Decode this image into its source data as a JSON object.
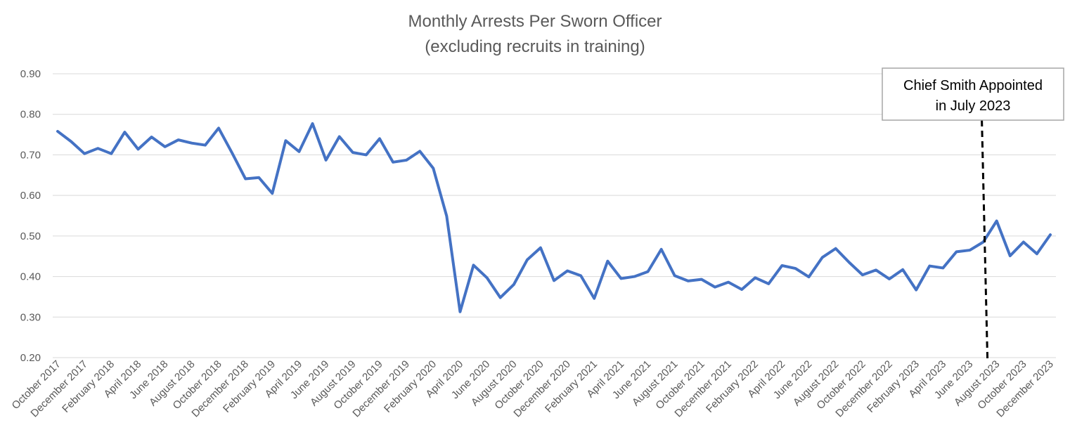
{
  "chart_data": {
    "type": "line",
    "title": "Monthly Arrests Per Sworn Officer",
    "subtitle": "(excluding recruits in training)",
    "xlabel": "",
    "ylabel": "",
    "ylim": [
      0.2,
      0.9
    ],
    "yticks": [
      "0.20",
      "0.30",
      "0.40",
      "0.50",
      "0.60",
      "0.70",
      "0.80",
      "0.90"
    ],
    "grid": true,
    "legend": "none",
    "color": "#4472c4",
    "x": [
      "October 2017",
      "November 2017",
      "December 2017",
      "January 2018",
      "February 2018",
      "March 2018",
      "April 2018",
      "May 2018",
      "June 2018",
      "July 2018",
      "August 2018",
      "September 2018",
      "October 2018",
      "November 2018",
      "December 2018",
      "January 2019",
      "February 2019",
      "March 2019",
      "April 2019",
      "May 2019",
      "June 2019",
      "July 2019",
      "August 2019",
      "September 2019",
      "October 2019",
      "November 2019",
      "December 2019",
      "January 2020",
      "February 2020",
      "March 2020",
      "April 2020",
      "May 2020",
      "June 2020",
      "July 2020",
      "August 2020",
      "September 2020",
      "October 2020",
      "November 2020",
      "December 2020",
      "January 2021",
      "February 2021",
      "March 2021",
      "April 2021",
      "May 2021",
      "June 2021",
      "July 2021",
      "August 2021",
      "September 2021",
      "October 2021",
      "November 2021",
      "December 2021",
      "January 2022",
      "February 2022",
      "March 2022",
      "April 2022",
      "May 2022",
      "June 2022",
      "July 2022",
      "August 2022",
      "September 2022",
      "October 2022",
      "November 2022",
      "December 2022",
      "January 2023",
      "February 2023",
      "March 2023",
      "April 2023",
      "May 2023",
      "June 2023",
      "July 2023",
      "August 2023",
      "September 2023",
      "October 2023",
      "November 2023",
      "December 2023"
    ],
    "xtick_labels": [
      "October 2017",
      "December 2017",
      "February 2018",
      "April 2018",
      "June 2018",
      "August 2018",
      "October 2018",
      "December 2018",
      "February 2019",
      "April 2019",
      "June 2019",
      "August 2019",
      "October 2019",
      "December 2019",
      "February 2020",
      "April 2020",
      "June 2020",
      "August 2020",
      "October 2020",
      "December 2020",
      "February 2021",
      "April 2021",
      "June 2021",
      "August 2021",
      "October 2021",
      "December 2021",
      "February 2022",
      "April 2022",
      "June 2022",
      "August 2022",
      "October 2022",
      "December 2022",
      "February 2023",
      "April 2023",
      "June 2023",
      "August 2023",
      "October 2023",
      "December 2023"
    ],
    "series": [
      {
        "values": [
          0.758,
          0.733,
          0.703,
          0.716,
          0.703,
          0.756,
          0.714,
          0.744,
          0.72,
          0.737,
          0.729,
          0.724,
          0.766,
          0.705,
          0.641,
          0.644,
          0.605,
          0.735,
          0.708,
          0.777,
          0.687,
          0.745,
          0.706,
          0.7,
          0.74,
          0.682,
          0.687,
          0.709,
          0.667,
          0.549,
          0.313,
          0.428,
          0.397,
          0.348,
          0.38,
          0.441,
          0.471,
          0.39,
          0.414,
          0.402,
          0.346,
          0.438,
          0.395,
          0.4,
          0.412,
          0.467,
          0.402,
          0.389,
          0.393,
          0.374,
          0.386,
          0.368,
          0.397,
          0.382,
          0.427,
          0.42,
          0.399,
          0.447,
          0.469,
          0.435,
          0.404,
          0.416,
          0.394,
          0.417,
          0.367,
          0.426,
          0.421,
          0.461,
          0.465,
          0.485,
          0.537,
          0.451,
          0.485,
          0.456,
          0.503
        ]
      }
    ],
    "annotations": [
      {
        "text_line1": "Chief Smith Appointed",
        "text_line2": "in July 2023",
        "marker_after": "July 2023",
        "line_style": "dashed"
      }
    ]
  }
}
